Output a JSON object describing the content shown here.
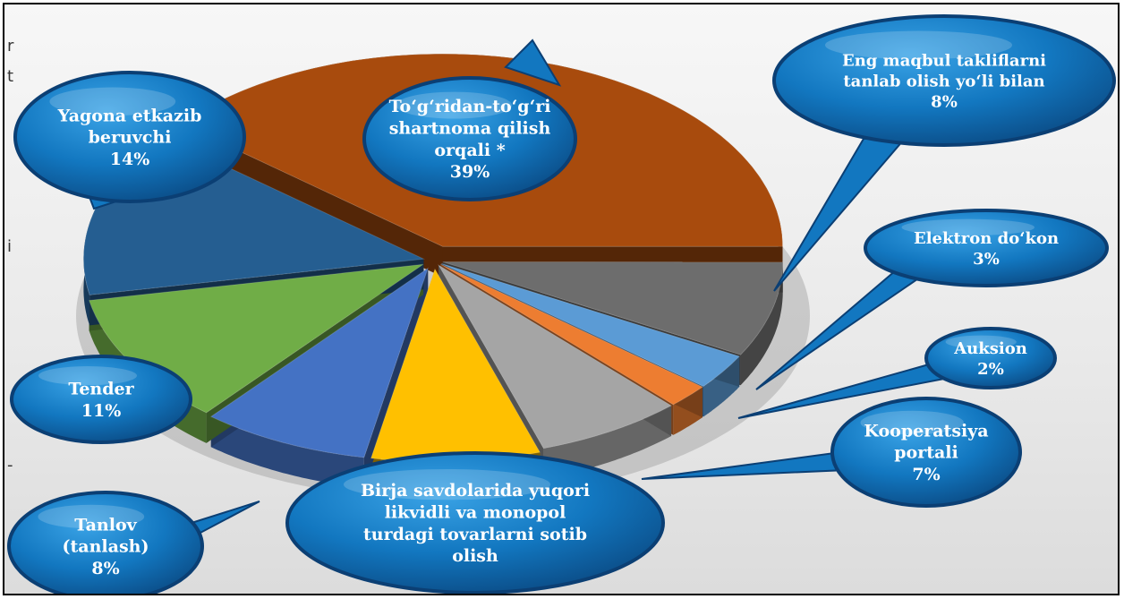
{
  "edge_fragments": [
    "r",
    "t",
    "i",
    "-"
  ],
  "colors": {
    "bubble_fill": "#1277c0",
    "bubble_edge": "#0b3f74",
    "shadow": "#8a8a8a"
  },
  "chart_data": {
    "type": "pie",
    "title": "",
    "slices": [
      {
        "label": [
          "To‘g‘ridan-to‘g‘ri",
          "shartnoma qilish",
          "orqali *"
        ],
        "percent_label": "39%",
        "value": 39,
        "color": "#a84b0d"
      },
      {
        "label": [
          "Eng maqbul takliflarni",
          "tanlab olish yo‘li bilan"
        ],
        "percent_label": "8%",
        "value": 8,
        "color": "#6d6d6d"
      },
      {
        "label": [
          "Elektron do‘kon"
        ],
        "percent_label": "3%",
        "value": 3,
        "color": "#5b9bd5"
      },
      {
        "label": [
          "Auksion"
        ],
        "percent_label": "2%",
        "value": 2,
        "color": "#ed7d31"
      },
      {
        "label": [
          "Kooperatsiya",
          "portali"
        ],
        "percent_label": "7%",
        "value": 7,
        "color": "#a5a5a5"
      },
      {
        "label": [
          "Birja savdolarida yuqori",
          "likvidli va monopol",
          "turdagi tovarlarni sotib",
          "olish"
        ],
        "percent_label": "",
        "value": 8,
        "color": "#ffc000"
      },
      {
        "label": [
          "Tanlov",
          "(tanlash)"
        ],
        "percent_label": "8%",
        "value": 8,
        "color": "#4472c4"
      },
      {
        "label": [
          "Tender"
        ],
        "percent_label": "11%",
        "value": 11,
        "color": "#70ad47"
      },
      {
        "label": [
          "Yagona etkazib",
          "beruvchi"
        ],
        "percent_label": "14%",
        "value": 14,
        "color": "#255e91"
      }
    ]
  }
}
